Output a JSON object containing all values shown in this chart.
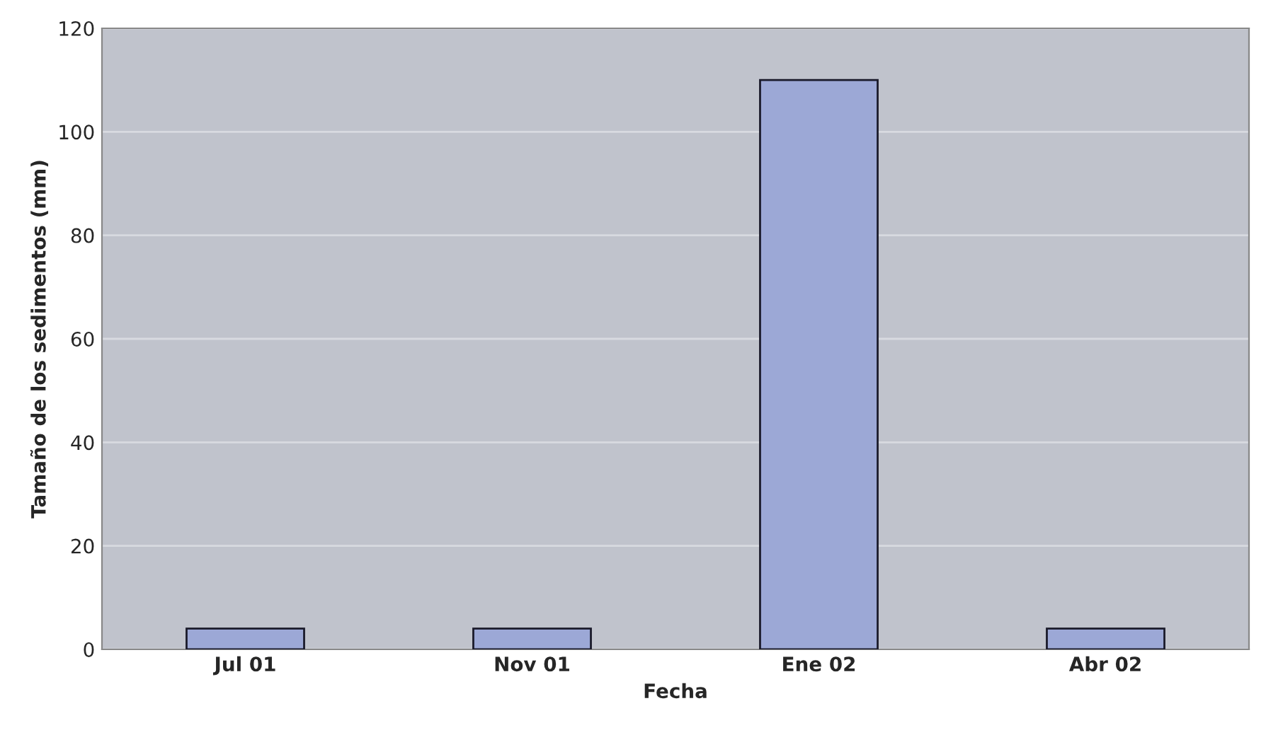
{
  "chart_data": {
    "type": "bar",
    "xlabel": "Fecha",
    "ylabel": "Tamaño de los sedimentos (mm)",
    "categories": [
      "Jul 01",
      "Nov 01",
      "Ene 02",
      "Abr 02"
    ],
    "values": [
      4,
      4,
      110,
      4
    ],
    "color": "#9ca8d6",
    "ylim": [
      0,
      120
    ],
    "yticks": [
      0,
      20,
      40,
      60,
      80,
      100,
      120
    ],
    "grid": "y"
  }
}
